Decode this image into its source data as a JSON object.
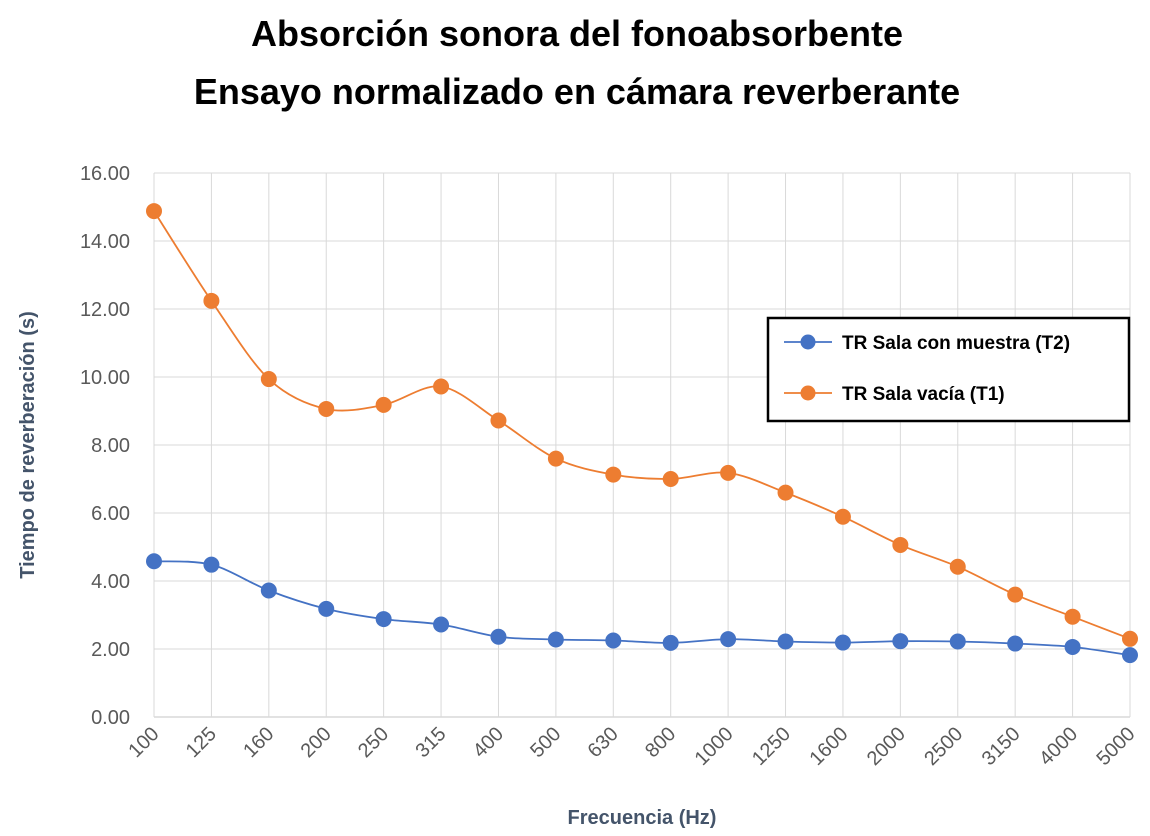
{
  "chart_data": {
    "type": "line",
    "title": "Absorción sonora del fonoabsorbente",
    "subtitle": "Ensayo normalizado en cámara reverberante",
    "xlabel": "Frecuencia (Hz)",
    "ylabel": "Tiempo de reverberación (s)",
    "ylim": [
      0,
      16
    ],
    "y_ticks": [
      "0.00",
      "2.00",
      "4.00",
      "6.00",
      "8.00",
      "10.00",
      "12.00",
      "14.00",
      "16.00"
    ],
    "categories": [
      "100",
      "125",
      "160",
      "200",
      "250",
      "315",
      "400",
      "500",
      "630",
      "800",
      "1000",
      "1250",
      "1600",
      "2000",
      "2500",
      "3150",
      "4000",
      "5000"
    ],
    "grid": true,
    "legend_position": "right",
    "series": [
      {
        "name": "TR Sala con muestra (T2)",
        "color": "#4472C4",
        "values": [
          4.58,
          4.48,
          3.72,
          3.18,
          2.88,
          2.72,
          2.36,
          2.28,
          2.25,
          2.18,
          2.29,
          2.22,
          2.19,
          2.23,
          2.22,
          2.16,
          2.06,
          1.82
        ]
      },
      {
        "name": "TR Sala vacía (T1)",
        "color": "#ED7D31",
        "values": [
          14.88,
          12.24,
          9.94,
          9.06,
          9.18,
          9.72,
          8.72,
          7.6,
          7.13,
          7.0,
          7.18,
          6.6,
          5.89,
          5.06,
          4.42,
          3.6,
          2.95,
          2.3
        ]
      }
    ]
  }
}
